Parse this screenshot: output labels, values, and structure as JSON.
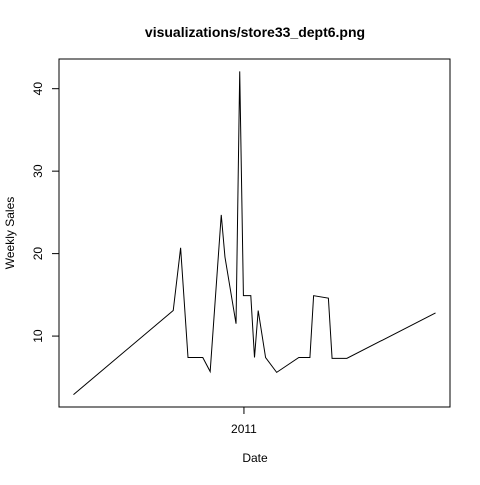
{
  "chart_data": {
    "type": "line",
    "title": "visualizations/store33_dept6.png",
    "xlabel": "Date",
    "ylabel": "Weekly Sales",
    "x_tick_labels": [
      "2011"
    ],
    "y_tick_labels": [
      "10",
      "20",
      "30",
      "40"
    ],
    "y_ticks": [
      10,
      20,
      30,
      40
    ],
    "ylim": [
      1.4,
      43.6
    ],
    "grid": false,
    "legend": "none",
    "line_color": "#000000",
    "series": [
      {
        "values": [
          {
            "x": "2010-02-12",
            "y": 2.9
          },
          {
            "x": "2010-08-20",
            "y": 13.1
          },
          {
            "x": "2010-09-03",
            "y": 20.7
          },
          {
            "x": "2010-09-17",
            "y": 7.4
          },
          {
            "x": "2010-10-15",
            "y": 7.4
          },
          {
            "x": "2010-10-29",
            "y": 5.7
          },
          {
            "x": "2010-11-19",
            "y": 24.7
          },
          {
            "x": "2010-11-26",
            "y": 19.6
          },
          {
            "x": "2010-12-17",
            "y": 11.5
          },
          {
            "x": "2010-12-24",
            "y": 42.1
          },
          {
            "x": "2010-12-31",
            "y": 14.9
          },
          {
            "x": "2011-01-14",
            "y": 14.9
          },
          {
            "x": "2011-01-21",
            "y": 7.4
          },
          {
            "x": "2011-01-28",
            "y": 13.1
          },
          {
            "x": "2011-02-11",
            "y": 7.4
          },
          {
            "x": "2011-03-04",
            "y": 5.6
          },
          {
            "x": "2011-04-15",
            "y": 7.4
          },
          {
            "x": "2011-05-06",
            "y": 7.4
          },
          {
            "x": "2011-05-13",
            "y": 14.9
          },
          {
            "x": "2011-06-10",
            "y": 14.6
          },
          {
            "x": "2011-06-17",
            "y": 7.3
          },
          {
            "x": "2011-07-15",
            "y": 7.3
          },
          {
            "x": "2011-12-30",
            "y": 12.8
          }
        ]
      }
    ]
  }
}
